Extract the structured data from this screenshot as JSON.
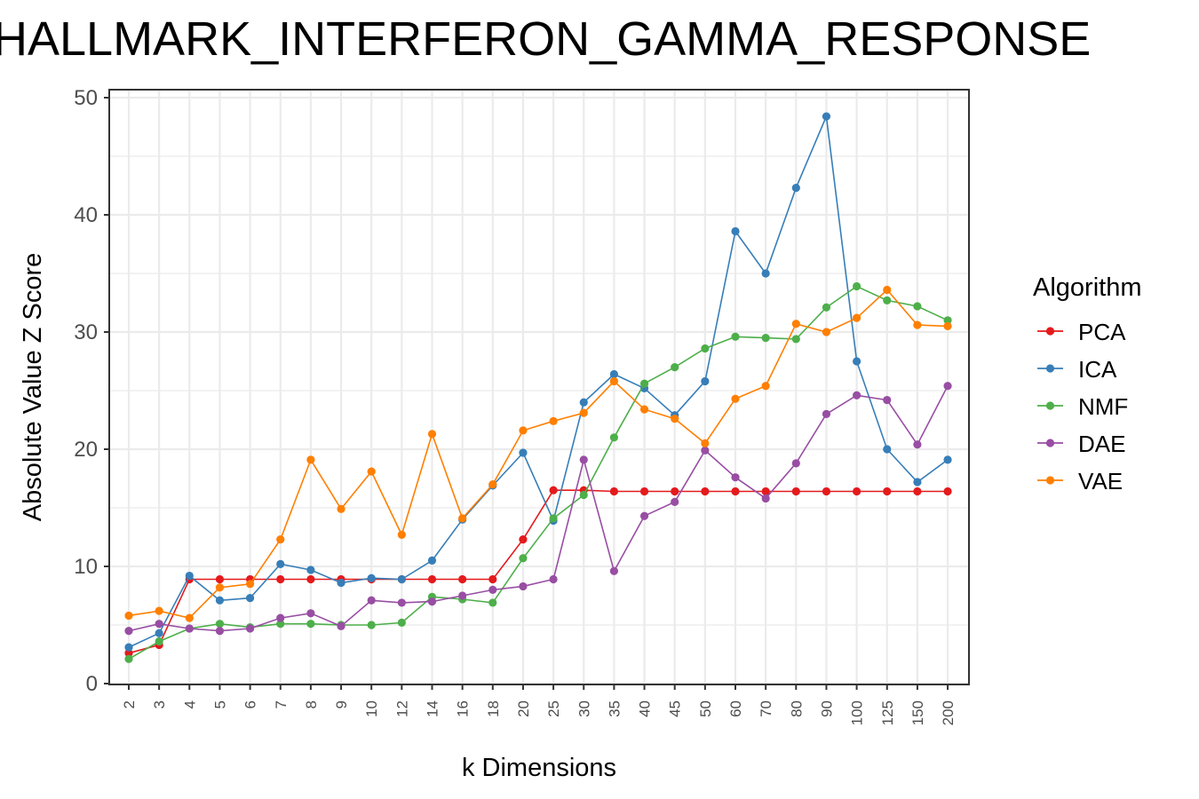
{
  "chart_data": {
    "type": "line",
    "title": "HALLMARK_INTERFERON_GAMMA_RESPONSE",
    "xlabel": "k Dimensions",
    "ylabel": "Absolute Value Z Score",
    "ylim": [
      0,
      50
    ],
    "yticks": [
      "0",
      "10",
      "20",
      "30",
      "40",
      "50"
    ],
    "categories": [
      "2",
      "3",
      "4",
      "5",
      "6",
      "7",
      "8",
      "9",
      "10",
      "12",
      "14",
      "16",
      "18",
      "20",
      "25",
      "30",
      "35",
      "40",
      "45",
      "50",
      "60",
      "70",
      "80",
      "90",
      "100",
      "125",
      "150",
      "200"
    ],
    "legend": {
      "title": "Algorithm",
      "position": "right"
    },
    "grid": true,
    "series": [
      {
        "name": "PCA",
        "color": "#e41a1c",
        "values": [
          2.6,
          3.3,
          8.9,
          8.9,
          8.9,
          8.9,
          8.9,
          8.9,
          8.9,
          8.9,
          8.9,
          8.9,
          8.9,
          12.3,
          16.5,
          16.5,
          16.4,
          16.4,
          16.4,
          16.4,
          16.4,
          16.4,
          16.4,
          16.4,
          16.4,
          16.4,
          16.4,
          16.4
        ]
      },
      {
        "name": "ICA",
        "color": "#377eb8",
        "values": [
          3.1,
          4.3,
          9.2,
          7.1,
          7.3,
          10.2,
          9.7,
          8.6,
          9.0,
          8.9,
          10.5,
          14.0,
          16.9,
          19.7,
          13.9,
          24.0,
          26.4,
          25.2,
          22.9,
          25.8,
          38.6,
          35.0,
          42.3,
          48.4,
          27.5,
          20.0,
          17.2,
          19.1
        ]
      },
      {
        "name": "NMF",
        "color": "#4daf4a",
        "values": [
          2.1,
          3.6,
          4.7,
          5.1,
          4.8,
          5.1,
          5.1,
          5.0,
          5.0,
          5.2,
          7.4,
          7.2,
          6.9,
          10.7,
          14.1,
          16.1,
          21.0,
          25.6,
          27.0,
          28.6,
          29.6,
          29.5,
          29.4,
          32.1,
          33.9,
          32.7,
          32.2,
          31.0
        ]
      },
      {
        "name": "DAE",
        "color": "#984ea3",
        "values": [
          4.5,
          5.1,
          4.7,
          4.5,
          4.7,
          5.6,
          6.0,
          4.9,
          7.1,
          6.9,
          7.0,
          7.5,
          8.0,
          8.3,
          8.9,
          19.1,
          9.6,
          14.3,
          15.5,
          19.9,
          17.6,
          15.8,
          18.8,
          23.0,
          24.6,
          24.2,
          20.4,
          25.4
        ]
      },
      {
        "name": "VAE",
        "color": "#ff7f00",
        "values": [
          5.8,
          6.2,
          5.6,
          8.2,
          8.5,
          12.3,
          19.1,
          14.9,
          18.1,
          12.7,
          21.3,
          14.1,
          17.0,
          21.6,
          22.4,
          23.1,
          25.8,
          23.4,
          22.6,
          20.5,
          24.3,
          25.4,
          30.7,
          30.0,
          31.2,
          33.6,
          30.6,
          30.5
        ]
      }
    ]
  }
}
